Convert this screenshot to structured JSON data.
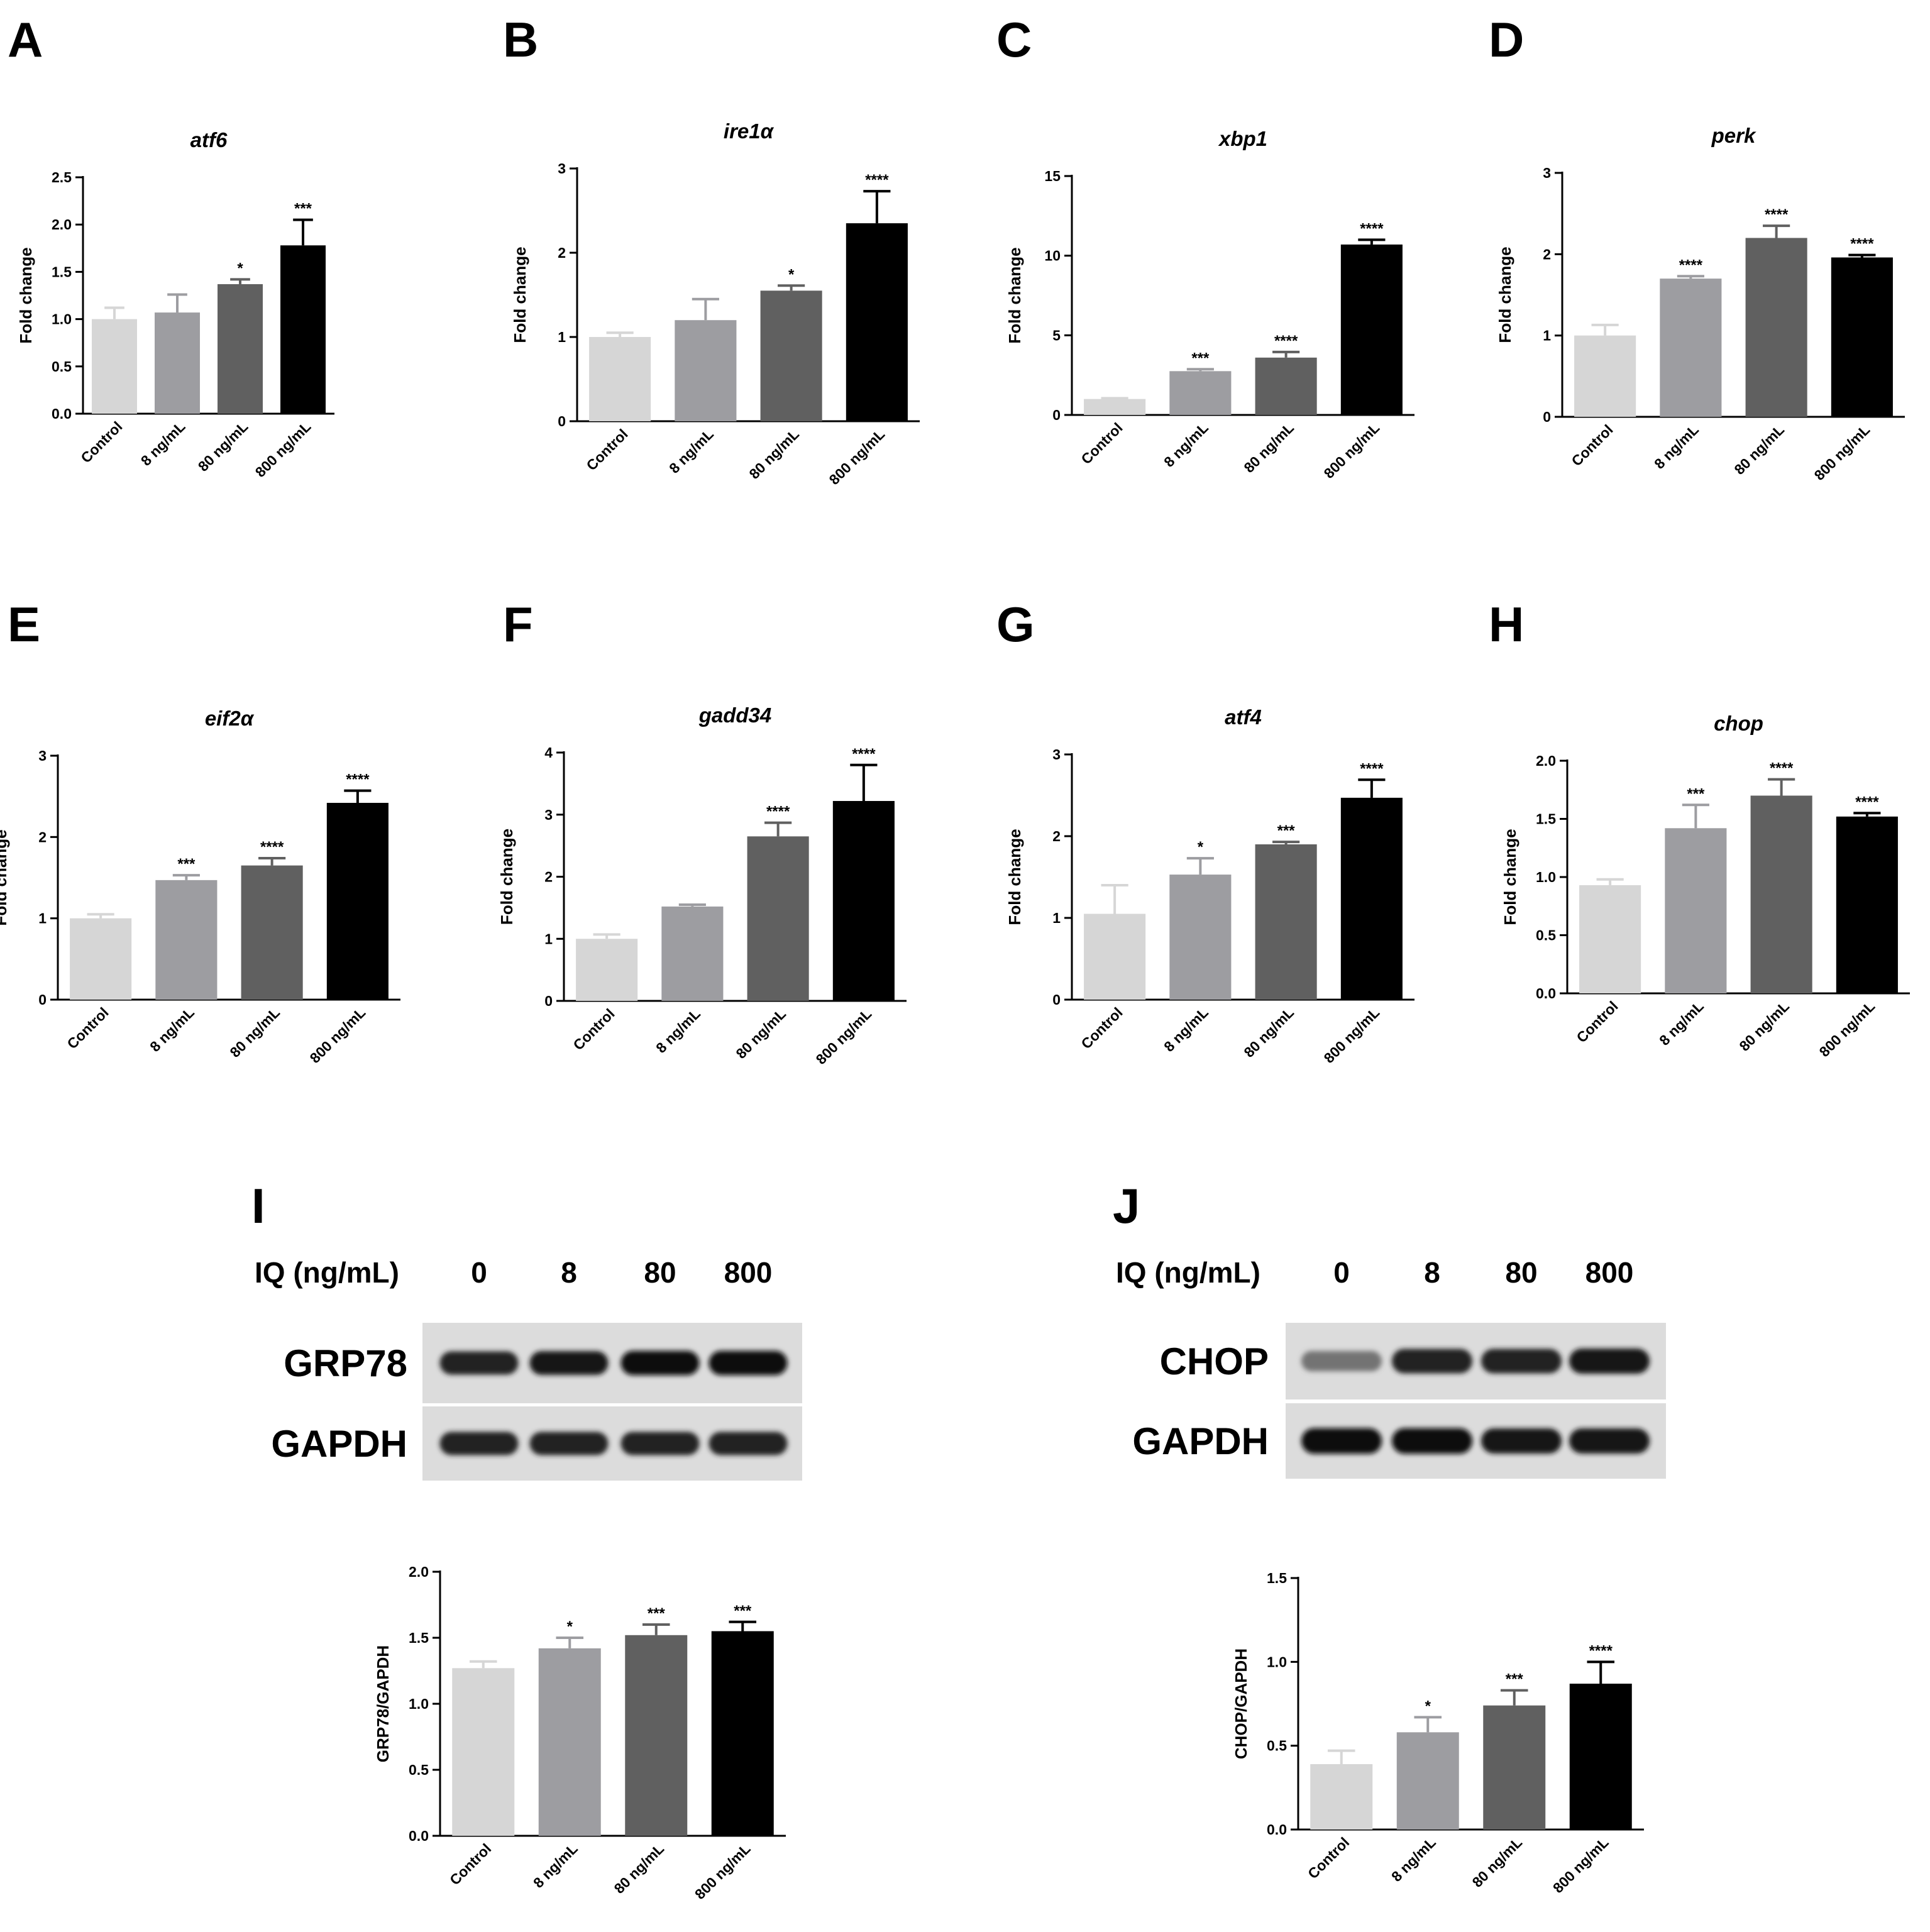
{
  "colors": {
    "control": "#d6d6d6",
    "low": "#9d9da1",
    "mid": "#606060",
    "high": "#000000"
  },
  "chart_data": [
    {
      "panel": "A",
      "type": "bar",
      "title": "atf6",
      "ylabel": "Fold change",
      "categories": [
        "Control",
        "8 ng/mL",
        "80 ng/mL",
        "800 ng/mL"
      ],
      "values": [
        1.0,
        1.07,
        1.37,
        1.78
      ],
      "errors": [
        0.12,
        0.19,
        0.05,
        0.27
      ],
      "significance": [
        "",
        "",
        "*",
        "***"
      ],
      "ylim": [
        0,
        2.5
      ],
      "yticks": [
        "0.0",
        "0.5",
        "1.0",
        "1.5",
        "2.0",
        "2.5"
      ]
    },
    {
      "panel": "B",
      "type": "bar",
      "title": "ire1α",
      "ylabel": "Fold change",
      "categories": [
        "Control",
        "8 ng/mL",
        "80 ng/mL",
        "800 ng/mL"
      ],
      "values": [
        1.0,
        1.2,
        1.55,
        2.35
      ],
      "errors": [
        0.05,
        0.25,
        0.06,
        0.38
      ],
      "significance": [
        "",
        "",
        "*",
        "****"
      ],
      "ylim": [
        0,
        3
      ],
      "yticks": [
        "0",
        "1",
        "2",
        "3"
      ]
    },
    {
      "panel": "C",
      "type": "bar",
      "title": "xbp1",
      "ylabel": "Fold change",
      "categories": [
        "Control",
        "8 ng/mL",
        "80 ng/mL",
        "800 ng/mL"
      ],
      "values": [
        1.0,
        2.75,
        3.6,
        10.7
      ],
      "errors": [
        0.05,
        0.12,
        0.35,
        0.3
      ],
      "significance": [
        "",
        "***",
        "****",
        "****"
      ],
      "ylim": [
        0,
        15
      ],
      "yticks": [
        "0",
        "5",
        "10",
        "15"
      ]
    },
    {
      "panel": "D",
      "type": "bar",
      "title": "perk",
      "ylabel": "Fold change",
      "categories": [
        "Control",
        "8 ng/mL",
        "80 ng/mL",
        "800 ng/mL"
      ],
      "values": [
        1.0,
        1.7,
        2.2,
        1.96
      ],
      "errors": [
        0.13,
        0.03,
        0.15,
        0.03
      ],
      "significance": [
        "",
        "****",
        "****",
        "****"
      ],
      "ylim": [
        0,
        3
      ],
      "yticks": [
        "0",
        "1",
        "2",
        "3"
      ]
    },
    {
      "panel": "E",
      "type": "bar",
      "title": "eif2α",
      "ylabel": "Fold change",
      "categories": [
        "Control",
        "8 ng/mL",
        "80 ng/mL",
        "800 ng/mL"
      ],
      "values": [
        1.0,
        1.47,
        1.65,
        2.42
      ],
      "errors": [
        0.05,
        0.06,
        0.09,
        0.15
      ],
      "significance": [
        "",
        "***",
        "****",
        "****"
      ],
      "ylim": [
        0,
        3
      ],
      "yticks": [
        "0",
        "1",
        "2",
        "3"
      ]
    },
    {
      "panel": "F",
      "type": "bar",
      "title": "gadd34",
      "ylabel": "Fold change",
      "categories": [
        "Control",
        "8 ng/mL",
        "80 ng/mL",
        "800 ng/mL"
      ],
      "values": [
        1.0,
        1.52,
        2.65,
        3.22
      ],
      "errors": [
        0.07,
        0.03,
        0.22,
        0.58
      ],
      "significance": [
        "",
        "",
        "****",
        "****"
      ],
      "ylim": [
        0,
        4
      ],
      "yticks": [
        "0",
        "1",
        "2",
        "3",
        "4"
      ]
    },
    {
      "panel": "G",
      "type": "bar",
      "title": "atf4",
      "ylabel": "Fold change",
      "categories": [
        "Control",
        "8 ng/mL",
        "80 ng/mL",
        "800 ng/mL"
      ],
      "values": [
        1.05,
        1.53,
        1.9,
        2.47
      ],
      "errors": [
        0.35,
        0.2,
        0.03,
        0.22
      ],
      "significance": [
        "",
        "*",
        "***",
        "****"
      ],
      "ylim": [
        0,
        3
      ],
      "yticks": [
        "0",
        "1",
        "2",
        "3"
      ]
    },
    {
      "panel": "H",
      "type": "bar",
      "title": "chop",
      "ylabel": "Fold change",
      "categories": [
        "Control",
        "8 ng/mL",
        "80 ng/mL",
        "800 ng/mL"
      ],
      "values": [
        0.93,
        1.42,
        1.7,
        1.52
      ],
      "errors": [
        0.05,
        0.2,
        0.14,
        0.03
      ],
      "significance": [
        "",
        "***",
        "****",
        "****"
      ],
      "ylim": [
        0,
        2.0
      ],
      "yticks": [
        "0.0",
        "0.5",
        "1.0",
        "1.5",
        "2.0"
      ]
    },
    {
      "panel": "I",
      "type": "bar",
      "title": "",
      "ylabel": "GRP78/GAPDH",
      "categories": [
        "Control",
        "8 ng/mL",
        "80 ng/mL",
        "800 ng/mL"
      ],
      "values": [
        1.27,
        1.42,
        1.52,
        1.55
      ],
      "errors": [
        0.05,
        0.08,
        0.08,
        0.07
      ],
      "significance": [
        "",
        "*",
        "***",
        "***"
      ],
      "ylim": [
        0,
        2.0
      ],
      "yticks": [
        "0.0",
        "0.5",
        "1.0",
        "1.5",
        "2.0"
      ]
    },
    {
      "panel": "J",
      "type": "bar",
      "title": "",
      "ylabel": "CHOP/GAPDH",
      "categories": [
        "Control",
        "8 ng/mL",
        "80 ng/mL",
        "800 ng/mL"
      ],
      "values": [
        0.39,
        0.58,
        0.74,
        0.87
      ],
      "errors": [
        0.08,
        0.09,
        0.09,
        0.13
      ],
      "significance": [
        "",
        "*",
        "***",
        "****"
      ],
      "ylim": [
        0,
        1.5
      ],
      "yticks": [
        "0.0",
        "0.5",
        "1.0",
        "1.5"
      ]
    }
  ],
  "blots": [
    {
      "panel": "I",
      "header_label": "IQ (ng/mL)",
      "lanes": [
        "0",
        "8",
        "80",
        "800"
      ],
      "rows": [
        {
          "label": "GRP78",
          "intensity": [
            0.85,
            0.9,
            0.95,
            0.95
          ]
        },
        {
          "label": "GAPDH",
          "intensity": [
            0.85,
            0.85,
            0.85,
            0.85
          ]
        }
      ]
    },
    {
      "panel": "J",
      "header_label": "IQ (ng/mL)",
      "lanes": [
        "0",
        "8",
        "80",
        "800"
      ],
      "rows": [
        {
          "label": "CHOP",
          "intensity": [
            0.5,
            0.85,
            0.85,
            0.9
          ]
        },
        {
          "label": "GAPDH",
          "intensity": [
            0.95,
            0.95,
            0.9,
            0.9
          ]
        }
      ]
    }
  ]
}
